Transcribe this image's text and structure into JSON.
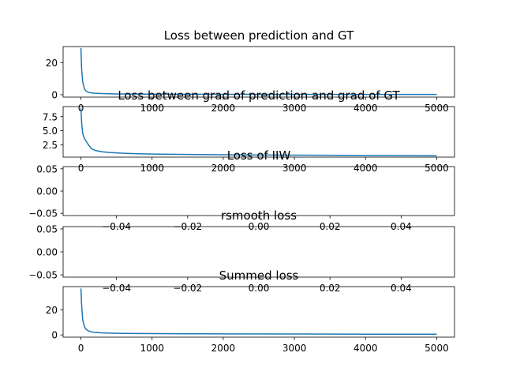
{
  "colors": {
    "line": "#1f77b4",
    "axes": "#000000",
    "background": "#ffffff"
  },
  "chart_data": [
    {
      "type": "line",
      "title": "Loss between prediction and GT",
      "xlim": [
        -250,
        5250
      ],
      "ylim": [
        -1.5,
        30
      ],
      "xticks": [
        0,
        1000,
        2000,
        3000,
        4000,
        5000
      ],
      "xtick_labels": [
        "0",
        "1000",
        "2000",
        "3000",
        "4000",
        "5000"
      ],
      "yticks": [
        0,
        20
      ],
      "ytick_labels": [
        "0",
        "20"
      ],
      "series": [
        {
          "x": [
            0,
            10,
            25,
            50,
            75,
            100,
            150,
            200,
            300,
            500,
            750,
            1000,
            1500,
            2000,
            3000,
            4000,
            5000
          ],
          "y": [
            29,
            16,
            8,
            3.5,
            2.2,
            1.6,
            1.1,
            0.9,
            0.7,
            0.5,
            0.4,
            0.35,
            0.3,
            0.25,
            0.2,
            0.18,
            0.15
          ]
        }
      ]
    },
    {
      "type": "line",
      "title": "Loss between grad of prediction and grad of GT",
      "xlim": [
        -250,
        5250
      ],
      "ylim": [
        0.3,
        9.3
      ],
      "xticks": [
        0,
        1000,
        2000,
        3000,
        4000,
        5000
      ],
      "xtick_labels": [
        "0",
        "1000",
        "2000",
        "3000",
        "4000",
        "5000"
      ],
      "yticks": [
        2.5,
        5.0,
        7.5
      ],
      "ytick_labels": [
        "2.5",
        "5.0",
        "7.5"
      ],
      "series": [
        {
          "x": [
            0,
            10,
            25,
            50,
            100,
            150,
            200,
            300,
            400,
            600,
            800,
            1000,
            1500,
            2000,
            3000,
            4000,
            5000
          ],
          "y": [
            9.0,
            6.5,
            4.5,
            3.6,
            2.6,
            1.8,
            1.5,
            1.25,
            1.12,
            0.98,
            0.9,
            0.85,
            0.78,
            0.72,
            0.65,
            0.6,
            0.55
          ]
        }
      ]
    },
    {
      "type": "line",
      "title": "Loss of IIW",
      "xlim": [
        -0.055,
        0.055
      ],
      "ylim": [
        -0.055,
        0.055
      ],
      "xticks": [
        -0.04,
        -0.02,
        0.0,
        0.02,
        0.04
      ],
      "xtick_labels": [
        "−0.04",
        "−0.02",
        "0.00",
        "0.02",
        "0.04"
      ],
      "yticks": [
        -0.05,
        0.0,
        0.05
      ],
      "ytick_labels": [
        "−0.05",
        "0.00",
        "0.05"
      ],
      "series": []
    },
    {
      "type": "line",
      "title": "rsmooth loss",
      "xlim": [
        -0.055,
        0.055
      ],
      "ylim": [
        -0.055,
        0.055
      ],
      "xticks": [
        -0.04,
        -0.02,
        0.0,
        0.02,
        0.04
      ],
      "xtick_labels": [
        "−0.04",
        "−0.02",
        "0.00",
        "0.02",
        "0.04"
      ],
      "yticks": [
        -0.05,
        0.0,
        0.05
      ],
      "ytick_labels": [
        "−0.05",
        "0.00",
        "0.05"
      ],
      "series": []
    },
    {
      "type": "line",
      "title": "Summed loss",
      "xlim": [
        -250,
        5250
      ],
      "ylim": [
        -1.8,
        38.5
      ],
      "xticks": [
        0,
        1000,
        2000,
        3000,
        4000,
        5000
      ],
      "xtick_labels": [
        "0",
        "1000",
        "2000",
        "3000",
        "4000",
        "5000"
      ],
      "yticks": [
        0,
        20
      ],
      "ytick_labels": [
        "0",
        "20"
      ],
      "series": [
        {
          "x": [
            0,
            10,
            25,
            50,
            75,
            100,
            150,
            200,
            300,
            500,
            750,
            1000,
            1500,
            2000,
            3000,
            4000,
            5000
          ],
          "y": [
            37,
            24,
            12,
            6.5,
            4.3,
            3.3,
            2.4,
            2.0,
            1.6,
            1.3,
            1.1,
            1.0,
            0.9,
            0.8,
            0.7,
            0.6,
            0.55
          ]
        }
      ]
    }
  ]
}
